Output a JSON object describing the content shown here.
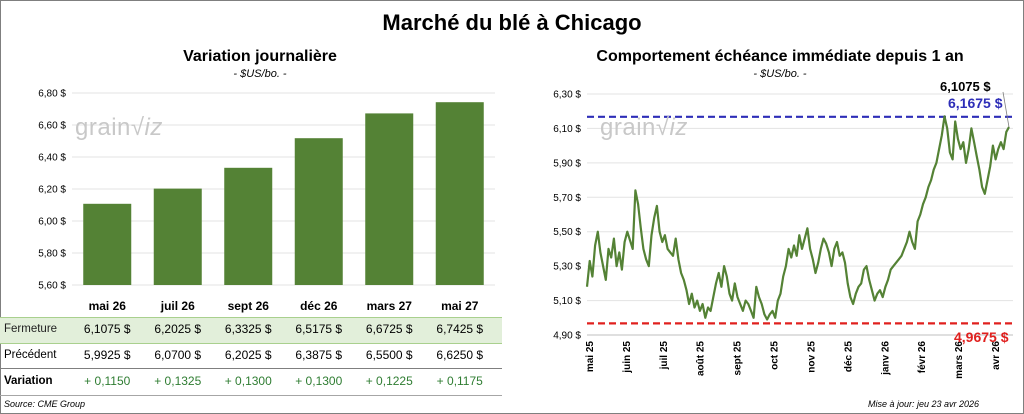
{
  "title": "Marché du blé à Chicago",
  "left": {
    "title": "Variation journalière",
    "unit": "- $US/bo. -"
  },
  "right": {
    "title": "Comportement échéance immédiate depuis 1 an",
    "unit": "- $US/bo. -",
    "last_label": "6,1075 $",
    "high_label": "6,1675 $",
    "low_label": "4,9675 $"
  },
  "table": {
    "columns": [
      "mai 26",
      "juil 26",
      "sept 26",
      "déc 26",
      "mars 27",
      "mai 27"
    ],
    "rows": [
      {
        "label": "Fermeture",
        "values": [
          "6,1075  $",
          "6,2025  $",
          "6,3325  $",
          "6,5175  $",
          "6,6725  $",
          "6,7425  $"
        ]
      },
      {
        "label": "Précédent",
        "values": [
          "5,9925  $",
          "6,0700  $",
          "6,2025  $",
          "6,3875  $",
          "6,5500  $",
          "6,6250  $"
        ]
      },
      {
        "label": "Variation",
        "values": [
          "+ 0,1150",
          "+ 0,1325",
          "+ 0,1300",
          "+ 0,1300",
          "+ 0,1225",
          "+ 0,1175"
        ]
      }
    ]
  },
  "footer": {
    "source": "Source: CME Group",
    "updated": "Mise à jour: jeu 23 avr 2026"
  },
  "colors": {
    "bar": "#548235",
    "line": "#548235",
    "high_ref": "#2e2eb8",
    "low_ref": "#e0201e",
    "table_band": "#e2efda",
    "variation_text": "#2f7d32"
  },
  "chart_data": [
    {
      "type": "bar",
      "categories": [
        "mai 26",
        "juil 26",
        "sept 26",
        "déc 26",
        "mars 27",
        "mai 27"
      ],
      "values": [
        6.1075,
        6.2025,
        6.3325,
        6.5175,
        6.6725,
        6.7425
      ],
      "title": "Variation journalière",
      "ylabel": "$US/bo.",
      "ylim": [
        5.6,
        6.8
      ],
      "yticks": [
        "5,60 $",
        "5,80 $",
        "6,00 $",
        "6,20 $",
        "6,40 $",
        "6,60 $",
        "6,80 $"
      ],
      "grid": true
    },
    {
      "type": "line",
      "title": "Comportement échéance immédiate depuis 1 an",
      "ylabel": "$US/bo.",
      "ylim": [
        4.9,
        6.3
      ],
      "yticks": [
        "4,90 $",
        "5,10 $",
        "5,30 $",
        "5,50 $",
        "5,70 $",
        "5,90 $",
        "6,10 $",
        "6,30 $"
      ],
      "xticks": [
        "mai 25",
        "juin 25",
        "juil 25",
        "août 25",
        "sept 25",
        "oct 25",
        "nov 25",
        "déc 25",
        "janv 26",
        "févr 26",
        "mars 26",
        "avr 26"
      ],
      "grid": true,
      "reference_lines": [
        {
          "value": 6.1675,
          "label": "6,1675 $",
          "color": "#2e2eb8",
          "style": "dashed"
        },
        {
          "value": 4.9675,
          "label": "4,9675 $",
          "color": "#e0201e",
          "style": "dashed"
        }
      ],
      "last_value": 6.1075,
      "values": [
        5.18,
        5.33,
        5.24,
        5.42,
        5.5,
        5.38,
        5.3,
        5.22,
        5.4,
        5.35,
        5.46,
        5.3,
        5.38,
        5.28,
        5.44,
        5.5,
        5.45,
        5.4,
        5.74,
        5.66,
        5.52,
        5.4,
        5.34,
        5.3,
        5.48,
        5.58,
        5.65,
        5.5,
        5.44,
        5.48,
        5.4,
        5.38,
        5.36,
        5.46,
        5.34,
        5.26,
        5.22,
        5.16,
        5.08,
        5.14,
        5.06,
        5.1,
        5.04,
        5.08,
        5.0,
        5.06,
        5.04,
        5.12,
        5.2,
        5.26,
        5.18,
        5.3,
        5.24,
        5.14,
        5.1,
        5.2,
        5.12,
        5.08,
        5.04,
        5.1,
        5.08,
        5.04,
        5.0,
        5.18,
        5.12,
        5.08,
        5.02,
        4.99,
        5.02,
        5.04,
        5.0,
        5.1,
        5.14,
        5.24,
        5.3,
        5.4,
        5.35,
        5.42,
        5.36,
        5.48,
        5.4,
        5.46,
        5.52,
        5.4,
        5.34,
        5.26,
        5.32,
        5.4,
        5.46,
        5.43,
        5.38,
        5.3,
        5.4,
        5.44,
        5.36,
        5.38,
        5.32,
        5.2,
        5.12,
        5.08,
        5.14,
        5.18,
        5.2,
        5.28,
        5.3,
        5.22,
        5.16,
        5.1,
        5.14,
        5.16,
        5.12,
        5.18,
        5.22,
        5.28,
        5.3,
        5.32,
        5.34,
        5.36,
        5.4,
        5.44,
        5.5,
        5.44,
        5.4,
        5.56,
        5.6,
        5.66,
        5.7,
        5.76,
        5.8,
        5.86,
        5.9,
        5.98,
        6.06,
        6.17,
        6.1,
        5.96,
        5.92,
        6.14,
        6.04,
        5.98,
        6.02,
        5.9,
        5.98,
        6.1,
        6.02,
        5.94,
        5.86,
        5.76,
        5.72,
        5.8,
        5.88,
        6.0,
        5.92,
        5.98,
        6.02,
        5.98,
        6.08,
        6.1075
      ]
    }
  ]
}
